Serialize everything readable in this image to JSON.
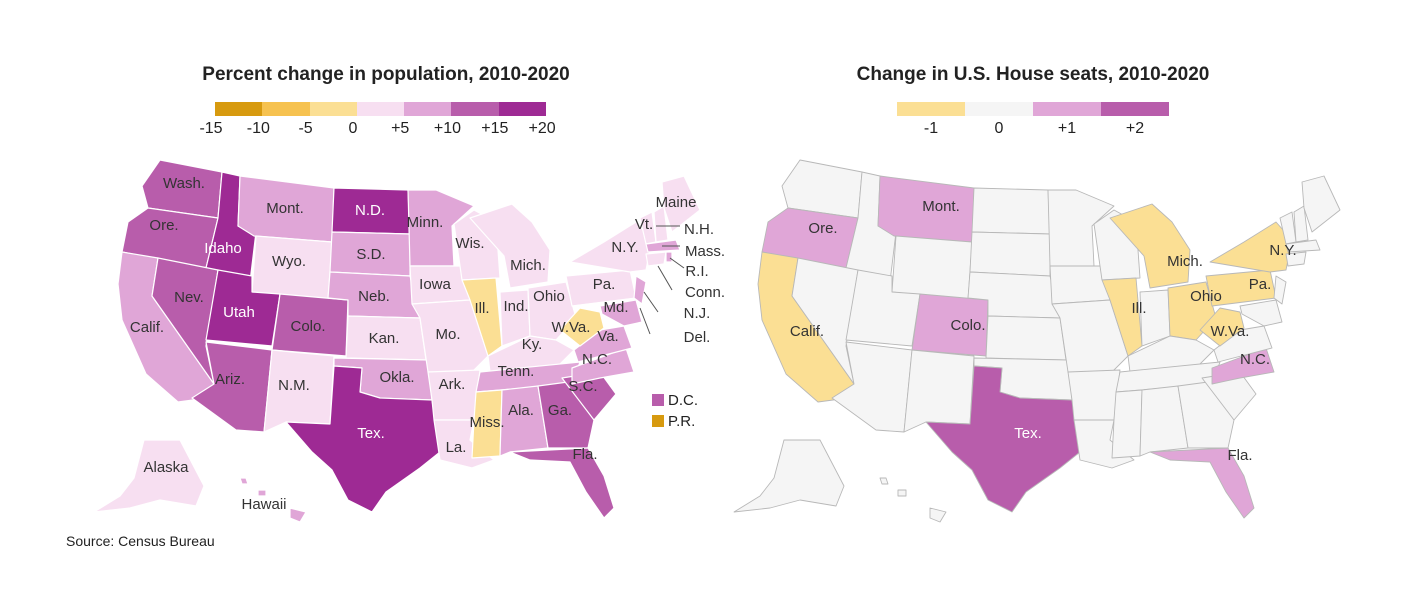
{
  "left": {
    "title": "Percent change in population, 2010-2020",
    "legend_colors": [
      "#d79a0f",
      "#f6c250",
      "#fbdf94",
      "#f7dff1",
      "#e0a6d7",
      "#b85dab",
      "#9e2a94"
    ],
    "legend_ticks": [
      "-15",
      "-10",
      "-5",
      "0",
      "+5",
      "+10",
      "+15",
      "+20"
    ],
    "extra_legend": [
      {
        "label": "D.C.",
        "color": "#b85dab"
      },
      {
        "label": "P.R.",
        "color": "#d79a0f"
      }
    ],
    "labels": {
      "wash": "Wash.",
      "ore": "Ore.",
      "idaho": "Idaho",
      "mont": "Mont.",
      "nd": "N.D.",
      "minn": "Minn.",
      "wis": "Wis.",
      "mich": "Mich.",
      "maine": "Maine",
      "vt": "Vt.",
      "nh": "N.H.",
      "mass": "Mass.",
      "ri": "R.I.",
      "conn": "Conn.",
      "nj": "N.J.",
      "del": "Del.",
      "ny": "N.Y.",
      "pa": "Pa.",
      "md": "Md.",
      "va": "Va.",
      "wva": "W.Va.",
      "ohio": "Ohio",
      "ind": "Ind.",
      "ill": "Ill.",
      "iowa": "Iowa",
      "sd": "S.D.",
      "wyo": "Wyo.",
      "neb": "Neb.",
      "utah": "Utah",
      "nev": "Nev.",
      "calif": "Calif.",
      "colo": "Colo.",
      "kan": "Kan.",
      "mo": "Mo.",
      "ky": "Ky.",
      "nc": "N.C.",
      "tenn": "Tenn.",
      "sc": "S.C.",
      "ariz": "Ariz.",
      "nm": "N.M.",
      "okla": "Okla.",
      "ark": "Ark.",
      "miss": "Miss.",
      "ala": "Ala.",
      "ga": "Ga.",
      "tex": "Tex.",
      "la": "La.",
      "fla": "Fla.",
      "alaska": "Alaska",
      "hawaii": "Hawaii"
    }
  },
  "right": {
    "title": "Change in U.S. House seats, 2010-2020",
    "legend_colors": [
      "#fbdf94",
      "#f5f5f5",
      "#e0a6d7",
      "#b85dab"
    ],
    "legend_ticks": [
      "-1",
      "0",
      "+1",
      "+2"
    ],
    "labels": {
      "ore": "Ore.",
      "mont": "Mont.",
      "calif": "Calif.",
      "colo": "Colo.",
      "tex": "Tex.",
      "ill": "Ill.",
      "mich": "Mich.",
      "ohio": "Ohio",
      "pa": "Pa.",
      "ny": "N.Y.",
      "wva": "W.Va.",
      "nc": "N.C.",
      "fla": "Fla."
    }
  },
  "source": "Source: Census Bureau"
}
